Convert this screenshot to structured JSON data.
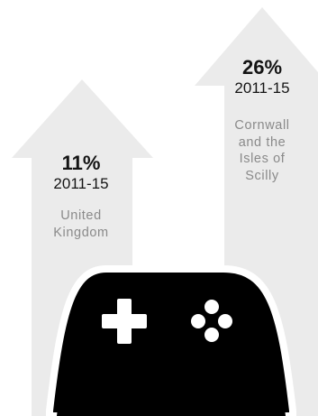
{
  "stats": [
    {
      "percent": "11%",
      "period": "2011-15",
      "region_lines": [
        "United",
        "Kingdom"
      ]
    },
    {
      "percent": "26%",
      "period": "2011-15",
      "region_lines": [
        "Cornwall",
        "and the",
        "Isles of",
        "Scilly"
      ]
    }
  ],
  "colors": {
    "arrow": "#ebebeb",
    "text": "#141414",
    "label": "#8a8a8a",
    "controller": "#000000"
  },
  "icon": "game-controller-icon"
}
